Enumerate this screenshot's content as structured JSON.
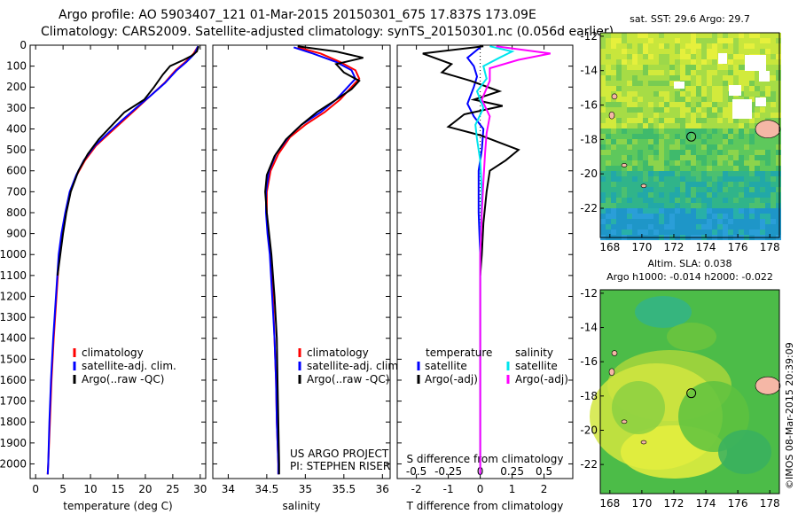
{
  "header": {
    "line1": "Argo profile: AO 5903407_121 01-Mar-2015 20150301_675 17.837S 173.09E",
    "line2": "Climatology: CARS2009. Satellite-adjusted climatology: synTS_20150301.nc (0.056d earlier)"
  },
  "colors": {
    "climatology": "#ff0000",
    "satellite": "#0000ff",
    "argo": "#000000",
    "salinity_sat": "#00e5ee",
    "salinity_argo": "#ff00ff",
    "land": "#f5b7a6"
  },
  "chart_data": [
    {
      "type": "line",
      "id": "temperature",
      "xlabel": "temperature (deg C)",
      "ylabel": "",
      "xlim": [
        -1,
        31
      ],
      "ylim": [
        2070,
        0
      ],
      "xticks": [
        0,
        5,
        10,
        15,
        20,
        25,
        30
      ],
      "yticks": [
        0,
        100,
        200,
        300,
        400,
        500,
        600,
        700,
        800,
        900,
        1000,
        1100,
        1200,
        1300,
        1400,
        1500,
        1600,
        1700,
        1800,
        1900,
        2000
      ],
      "legend": [
        "climatology",
        "satellite-adj. clim.",
        "Argo(..raw -QC)"
      ],
      "series": [
        {
          "name": "climatology",
          "color": "#ff0000",
          "points": [
            [
              29.5,
              10
            ],
            [
              28.8,
              40
            ],
            [
              27.3,
              80
            ],
            [
              25.5,
              120
            ],
            [
              23.5,
              180
            ],
            [
              21.0,
              240
            ],
            [
              18.5,
              300
            ],
            [
              16.0,
              360
            ],
            [
              13.5,
              420
            ],
            [
              11.0,
              480
            ],
            [
              9.0,
              550
            ],
            [
              7.5,
              620
            ],
            [
              6.3,
              700
            ],
            [
              5.5,
              800
            ],
            [
              4.8,
              900
            ],
            [
              4.3,
              1000
            ],
            [
              3.8,
              1200
            ],
            [
              3.3,
              1400
            ],
            [
              2.9,
              1600
            ],
            [
              2.6,
              1800
            ],
            [
              2.3,
              2000
            ],
            [
              2.2,
              2050
            ]
          ]
        },
        {
          "name": "satellite-adj. clim.",
          "color": "#0000ff",
          "points": [
            [
              29.6,
              5
            ],
            [
              29.0,
              40
            ],
            [
              27.5,
              80
            ],
            [
              25.7,
              120
            ],
            [
              23.6,
              180
            ],
            [
              21.0,
              240
            ],
            [
              18.3,
              300
            ],
            [
              15.7,
              360
            ],
            [
              13.2,
              420
            ],
            [
              10.8,
              480
            ],
            [
              8.8,
              550
            ],
            [
              7.4,
              620
            ],
            [
              6.2,
              700
            ],
            [
              5.4,
              800
            ],
            [
              4.7,
              900
            ],
            [
              4.2,
              1000
            ],
            [
              3.7,
              1200
            ],
            [
              3.2,
              1400
            ],
            [
              2.8,
              1600
            ],
            [
              2.5,
              1800
            ],
            [
              2.3,
              2000
            ],
            [
              2.2,
              2050
            ]
          ]
        },
        {
          "name": "Argo(..raw -QC)",
          "color": "#000000",
          "points": [
            [
              29.7,
              5
            ],
            [
              29.4,
              30
            ],
            [
              28.5,
              50
            ],
            [
              27.0,
              70
            ],
            [
              24.5,
              100
            ],
            [
              23.2,
              140
            ],
            [
              21.6,
              200
            ],
            [
              19.8,
              260
            ],
            [
              16.2,
              320
            ],
            [
              14.0,
              380
            ],
            [
              11.5,
              450
            ],
            [
              9.5,
              520
            ],
            [
              7.8,
              600
            ],
            [
              6.4,
              700
            ],
            [
              5.6,
              800
            ],
            [
              5.0,
              900
            ],
            [
              4.5,
              1000
            ],
            [
              4.0,
              1100
            ]
          ]
        }
      ]
    },
    {
      "type": "line",
      "id": "salinity",
      "xlabel": "salinity",
      "ylabel": "",
      "xlim": [
        33.8,
        36.1
      ],
      "ylim": [
        2070,
        0
      ],
      "xticks": [
        34,
        34.5,
        35,
        35.5,
        36
      ],
      "legend": [
        "climatology",
        "satellite-adj. clim.",
        "Argo(..raw -QC)"
      ],
      "annotations": [
        "US ARGO PROJECT",
        "PI: STEPHEN RISER"
      ],
      "series": [
        {
          "name": "climatology",
          "color": "#ff0000",
          "points": [
            [
              34.9,
              10
            ],
            [
              35.2,
              40
            ],
            [
              35.45,
              80
            ],
            [
              35.65,
              120
            ],
            [
              35.7,
              160
            ],
            [
              35.6,
              200
            ],
            [
              35.45,
              260
            ],
            [
              35.25,
              320
            ],
            [
              35.0,
              380
            ],
            [
              34.8,
              440
            ],
            [
              34.65,
              520
            ],
            [
              34.55,
              600
            ],
            [
              34.5,
              700
            ],
            [
              34.5,
              800
            ],
            [
              34.52,
              900
            ],
            [
              34.55,
              1000
            ],
            [
              34.58,
              1200
            ],
            [
              34.6,
              1400
            ],
            [
              34.62,
              1600
            ],
            [
              34.63,
              1800
            ],
            [
              34.65,
              2000
            ],
            [
              34.65,
              2050
            ]
          ]
        },
        {
          "name": "satellite-adj. clim.",
          "color": "#0000ff",
          "points": [
            [
              34.85,
              10
            ],
            [
              35.1,
              40
            ],
            [
              35.4,
              80
            ],
            [
              35.6,
              120
            ],
            [
              35.65,
              160
            ],
            [
              35.55,
              200
            ],
            [
              35.4,
              260
            ],
            [
              35.2,
              320
            ],
            [
              34.95,
              380
            ],
            [
              34.78,
              440
            ],
            [
              34.62,
              520
            ],
            [
              34.53,
              600
            ],
            [
              34.49,
              700
            ],
            [
              34.49,
              800
            ],
            [
              34.51,
              900
            ],
            [
              34.54,
              1000
            ],
            [
              34.57,
              1200
            ],
            [
              34.6,
              1400
            ],
            [
              34.62,
              1600
            ],
            [
              34.63,
              1800
            ],
            [
              34.65,
              2000
            ],
            [
              34.65,
              2050
            ]
          ]
        },
        {
          "name": "Argo(..raw -QC)",
          "color": "#000000",
          "points": [
            [
              34.9,
              5
            ],
            [
              35.4,
              30
            ],
            [
              35.75,
              60
            ],
            [
              35.4,
              90
            ],
            [
              35.5,
              130
            ],
            [
              35.7,
              170
            ],
            [
              35.6,
              210
            ],
            [
              35.4,
              260
            ],
            [
              35.15,
              320
            ],
            [
              34.95,
              380
            ],
            [
              34.75,
              450
            ],
            [
              34.6,
              530
            ],
            [
              34.5,
              620
            ],
            [
              34.48,
              700
            ],
            [
              34.5,
              800
            ],
            [
              34.53,
              900
            ],
            [
              34.56,
              1000
            ],
            [
              34.6,
              1200
            ],
            [
              34.63,
              1400
            ],
            [
              34.64,
              1600
            ],
            [
              34.65,
              1800
            ],
            [
              34.66,
              2000
            ],
            [
              34.66,
              2050
            ]
          ]
        }
      ]
    },
    {
      "type": "line",
      "id": "difference",
      "xlabel": "T difference from climatology",
      "x2label": "S difference from climatology",
      "xlim": [
        -2.6,
        2.9
      ],
      "ylim": [
        2070,
        0
      ],
      "xticks": [
        -2,
        -1,
        0,
        1,
        2
      ],
      "xticklabels": [
        "-2",
        "-1",
        "0",
        "1",
        "2"
      ],
      "x2ticks": [
        -0.5,
        -0.25,
        0,
        0.25,
        0.5
      ],
      "x2ticklabels": [
        "-0.5",
        "-0.25",
        "0",
        "0.25",
        "0.5"
      ],
      "legend": [
        "temperature",
        "satellite",
        "Argo(-adj)",
        "salinity",
        "satellite",
        "Argo(-adj)"
      ],
      "series": [
        {
          "name": "satellite",
          "color": "#0000ff",
          "points": [
            [
              0.0,
              10
            ],
            [
              -0.4,
              60
            ],
            [
              -0.2,
              100
            ],
            [
              -0.1,
              150
            ],
            [
              -0.2,
              200
            ],
            [
              -0.4,
              280
            ],
            [
              -0.2,
              340
            ],
            [
              0.1,
              400
            ],
            [
              0.05,
              500
            ],
            [
              -0.05,
              600
            ],
            [
              -0.05,
              800
            ],
            [
              0.0,
              1000
            ],
            [
              0.0,
              2050
            ]
          ]
        },
        {
          "name": "Argo(-adj)",
          "color": "#000000",
          "points": [
            [
              0.1,
              5
            ],
            [
              -1.8,
              40
            ],
            [
              -0.9,
              90
            ],
            [
              -1.2,
              130
            ],
            [
              -0.3,
              170
            ],
            [
              0.6,
              220
            ],
            [
              -0.2,
              260
            ],
            [
              0.7,
              290
            ],
            [
              -0.5,
              330
            ],
            [
              -1.0,
              390
            ],
            [
              0.0,
              430
            ],
            [
              1.2,
              500
            ],
            [
              0.8,
              550
            ],
            [
              0.3,
              600
            ],
            [
              0.2,
              700
            ],
            [
              0.1,
              850
            ],
            [
              0.05,
              1000
            ],
            [
              0.0,
              1100
            ]
          ]
        },
        {
          "name": "satellite",
          "color": "#00e5ee",
          "points": [
            [
              0.3,
              5
            ],
            [
              1.0,
              30
            ],
            [
              0.6,
              60
            ],
            [
              0.1,
              100
            ],
            [
              0.2,
              160
            ],
            [
              -0.1,
              220
            ],
            [
              0.1,
              300
            ],
            [
              -0.15,
              380
            ],
            [
              -0.1,
              450
            ],
            [
              0.0,
              550
            ],
            [
              0.05,
              700
            ],
            [
              0.0,
              1000
            ],
            [
              0.0,
              2050
            ]
          ]
        },
        {
          "name": "Argo(-adj)",
          "color": "#ff00ff",
          "points": [
            [
              0.5,
              5
            ],
            [
              2.2,
              40
            ],
            [
              1.2,
              70
            ],
            [
              0.3,
              110
            ],
            [
              0.3,
              170
            ],
            [
              0.05,
              260
            ],
            [
              0.3,
              340
            ],
            [
              0.2,
              420
            ],
            [
              0.15,
              520
            ],
            [
              0.1,
              650
            ],
            [
              0.05,
              800
            ],
            [
              0.0,
              1000
            ],
            [
              0.0,
              2050
            ]
          ]
        }
      ]
    },
    {
      "type": "heatmap",
      "id": "sst_map",
      "title": "sat. SST: 29.6 Argo: 29.7",
      "xlim": [
        167.4,
        178.6
      ],
      "ylim": [
        -23.7,
        -11.8
      ],
      "xticks": [
        168,
        170,
        172,
        174,
        176,
        178
      ],
      "yticks": [
        -12,
        -14,
        -16,
        -18,
        -20,
        -22
      ],
      "profile_location": [
        173.09,
        -17.837
      ]
    },
    {
      "type": "heatmap",
      "id": "sla_map",
      "title_line1": "Altim. SLA: 0.038",
      "title_line2": "Argo h1000: -0.014 h2000: -0.022",
      "xlim": [
        167.4,
        178.6
      ],
      "ylim": [
        -23.7,
        -11.8
      ],
      "xticks": [
        168,
        170,
        172,
        174,
        176,
        178
      ],
      "yticks": [
        -12,
        -14,
        -16,
        -18,
        -20,
        -22
      ],
      "profile_location": [
        173.09,
        -17.837
      ]
    }
  ],
  "footer": {
    "credit": "©IMOS 08-Mar-2015 20:39:09"
  }
}
